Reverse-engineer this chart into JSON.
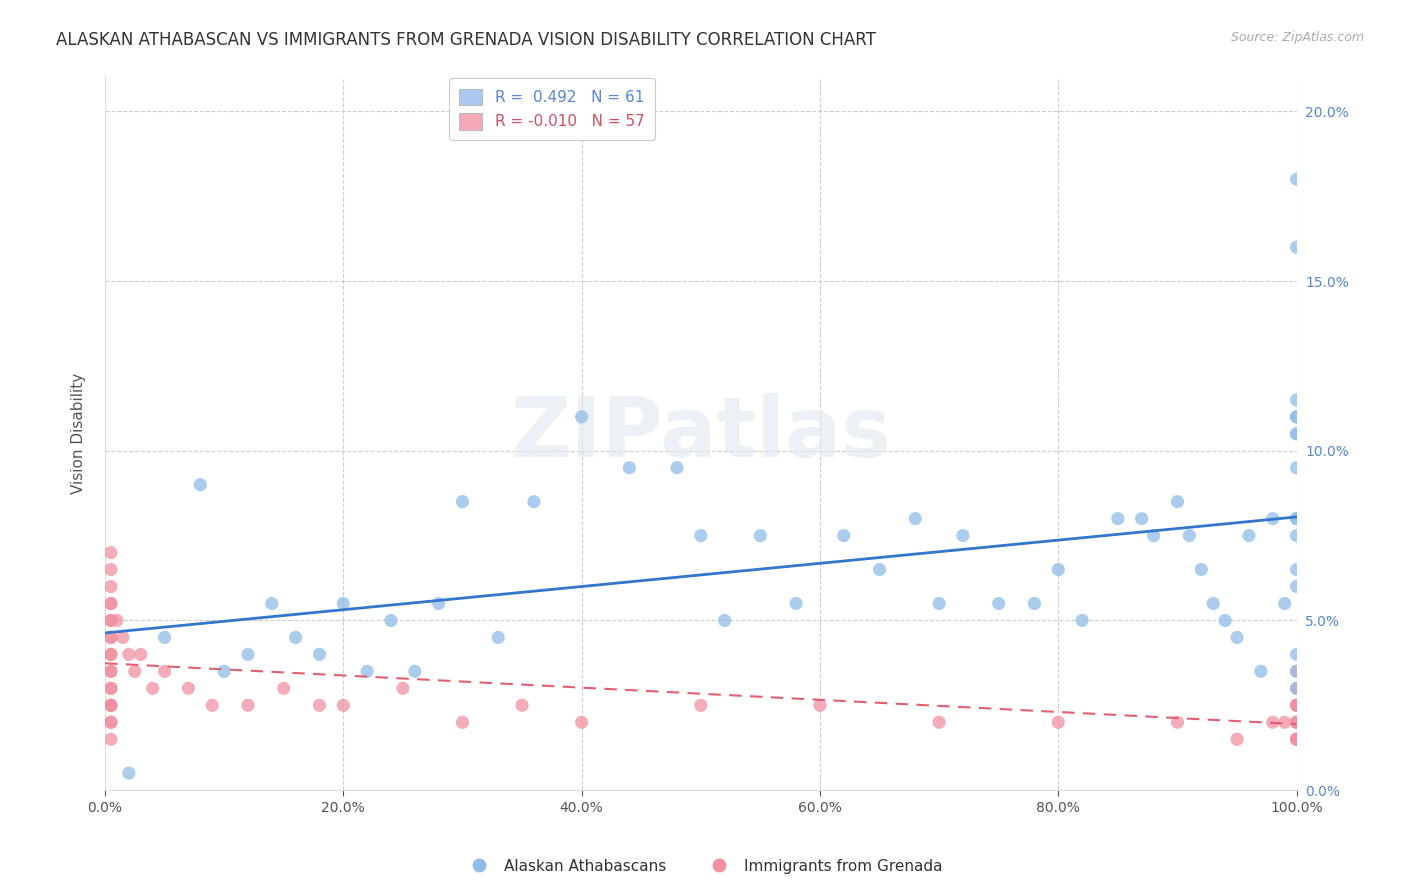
{
  "title": "ALASKAN ATHABASCAN VS IMMIGRANTS FROM GRENADA VISION DISABILITY CORRELATION CHART",
  "source": "Source: ZipAtlas.com",
  "ylabel_label": "Vision Disability",
  "legend1_label": "R =  0.492   N = 61",
  "legend2_label": "R = -0.010   N = 57",
  "legend1_color": "#adc8f0",
  "legend2_color": "#f4a8b8",
  "scatter1_color": "#90bce8",
  "scatter2_color": "#f090a0",
  "line1_color": "#3377cc",
  "line2_color": "#e06070",
  "watermark": "ZIPatlas",
  "background_color": "#ffffff",
  "plot_bg_color": "#ffffff",
  "grid_color": "#c8c8c8",
  "blue_scatter_x": [
    2,
    5,
    8,
    10,
    12,
    14,
    16,
    18,
    20,
    22,
    24,
    26,
    28,
    30,
    33,
    36,
    40,
    44,
    48,
    50,
    52,
    55,
    58,
    62,
    65,
    68,
    70,
    72,
    75,
    78,
    80,
    82,
    85,
    87,
    88,
    90,
    91,
    92,
    93,
    94,
    95,
    96,
    97,
    98,
    99,
    100,
    100,
    100,
    100,
    100,
    100,
    100,
    100,
    100,
    100,
    100,
    100,
    100,
    100,
    100,
    100
  ],
  "blue_scatter_y": [
    0.5,
    4.5,
    9.0,
    3.5,
    4.0,
    5.5,
    4.5,
    4.0,
    5.5,
    3.5,
    5.0,
    3.5,
    5.5,
    8.5,
    4.5,
    8.5,
    11.0,
    9.5,
    9.5,
    7.5,
    5.0,
    7.5,
    5.5,
    7.5,
    6.5,
    8.0,
    5.5,
    7.5,
    5.5,
    5.5,
    6.5,
    5.0,
    8.0,
    8.0,
    7.5,
    8.5,
    7.5,
    6.5,
    5.5,
    5.0,
    4.5,
    7.5,
    3.5,
    8.0,
    5.5,
    11.0,
    10.5,
    10.5,
    9.5,
    8.0,
    8.0,
    6.0,
    4.0,
    3.5,
    3.0,
    6.5,
    7.5,
    16.0,
    18.0,
    11.5,
    11.0
  ],
  "pink_scatter_x": [
    0.5,
    0.5,
    0.5,
    0.5,
    0.5,
    0.5,
    0.5,
    0.5,
    0.5,
    0.5,
    0.5,
    0.5,
    0.5,
    0.5,
    0.5,
    0.5,
    0.5,
    0.5,
    0.5,
    0.5,
    0.5,
    1.0,
    1.5,
    2.0,
    2.5,
    3.0,
    4.0,
    5.0,
    7.0,
    9.0,
    12.0,
    15.0,
    18.0,
    20.0,
    25.0,
    30.0,
    35.0,
    40.0,
    50.0,
    60.0,
    70.0,
    80.0,
    90.0,
    95.0,
    98.0,
    99.0,
    100.0,
    100.0,
    100.0,
    100.0,
    100.0,
    100.0,
    100.0,
    100.0,
    100.0,
    100.0,
    100.0
  ],
  "pink_scatter_y": [
    7.0,
    6.5,
    6.0,
    5.5,
    5.5,
    5.0,
    5.0,
    4.5,
    4.5,
    4.0,
    4.0,
    3.5,
    3.5,
    3.0,
    3.0,
    2.5,
    2.5,
    2.5,
    2.0,
    2.0,
    1.5,
    5.0,
    4.5,
    4.0,
    3.5,
    4.0,
    3.0,
    3.5,
    3.0,
    2.5,
    2.5,
    3.0,
    2.5,
    2.5,
    3.0,
    2.0,
    2.5,
    2.0,
    2.5,
    2.5,
    2.0,
    2.0,
    2.0,
    1.5,
    2.0,
    2.0,
    2.0,
    2.5,
    1.5,
    2.0,
    3.0,
    1.5,
    3.5,
    2.5,
    2.0,
    2.5,
    1.5
  ],
  "xlim": [
    0,
    100
  ],
  "ylim": [
    0,
    21
  ],
  "xticks": [
    0,
    20,
    40,
    60,
    80,
    100
  ],
  "yticks": [
    0,
    5,
    10,
    15,
    20
  ],
  "xtick_labels": [
    "0.0%",
    "20.0%",
    "40.0%",
    "60.0%",
    "80.0%",
    "100.0%"
  ],
  "ytick_labels": [
    "0.0%",
    "5.0%",
    "10.0%",
    "15.0%",
    "20.0%"
  ],
  "legend_bottom_labels": [
    "Alaskan Athabascans",
    "Immigrants from Grenada"
  ],
  "title_fontsize": 12,
  "tick_fontsize": 10
}
